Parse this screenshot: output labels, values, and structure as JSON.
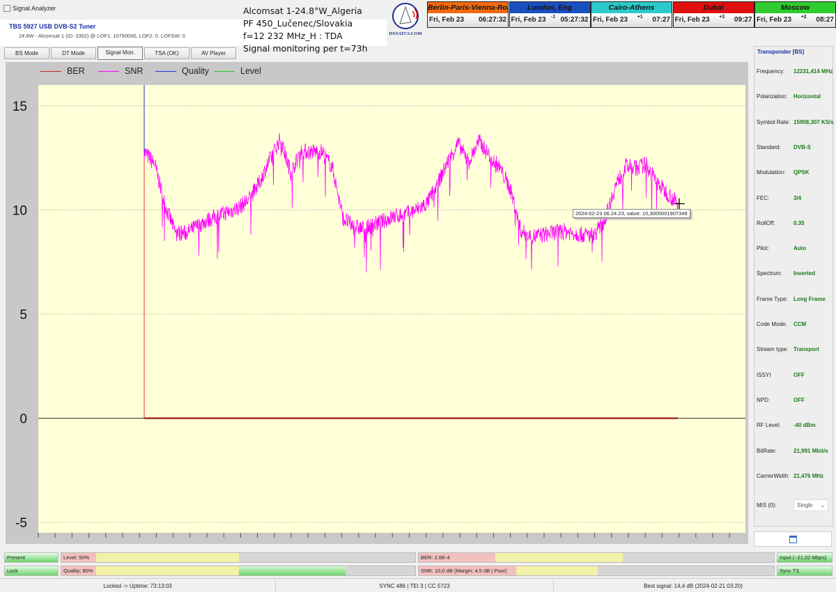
{
  "window": {
    "title": "Signal Analyzer"
  },
  "tuner": {
    "name": "TBS 5927 USB DVB-S2 Tuner",
    "info": "24.8W - Alcomsat 1 (ID: 3352) @ LOF1: 10750000, LOF2: 0, LOFSW: 0"
  },
  "overlay": {
    "line1": "Alcomsat 1-24.8°W_Algeria",
    "line2": "PF 450_Lučenec/Slovakia",
    "line3": "f=12 232 MHz_H : TDA",
    "line4": "Signal monitoring per t=73h",
    "logo": "DXSATCS.COM"
  },
  "clocks": [
    {
      "city": "Berlin-Paris-Vienna-Roma",
      "date": "Fri, Feb 23",
      "offset": "",
      "time": "06:27:32",
      "color": "#f26a10",
      "text": "#111"
    },
    {
      "city": "London, Eng",
      "date": "Fri, Feb 23",
      "offset": "-1",
      "time": "05:27:32",
      "color": "#1a4fc0",
      "text": "#111"
    },
    {
      "city": "Cairo-Athens",
      "date": "Fri, Feb 23",
      "offset": "+1",
      "time": "07:27",
      "color": "#2ccaca",
      "text": "#111"
    },
    {
      "city": "Dubai",
      "date": "Fri, Feb 23",
      "offset": "+3",
      "time": "09:27",
      "color": "#e01010",
      "text": "#111"
    },
    {
      "city": "Moscow",
      "date": "Fri, Feb 23",
      "offset": "+2",
      "time": "08:27",
      "color": "#2ecc2e",
      "text": "#111"
    }
  ],
  "tabs": [
    {
      "label": "BS Mode"
    },
    {
      "label": "DT Mode"
    },
    {
      "label": "Signal Mon.",
      "active": true
    },
    {
      "label": "TSA (OK)"
    },
    {
      "label": "AV Player"
    }
  ],
  "chart_data": {
    "type": "line",
    "legend": [
      {
        "name": "BER",
        "color": "#cc2020"
      },
      {
        "name": "SNR",
        "color": "#ff00ff"
      },
      {
        "name": "Quality",
        "color": "#2030d0"
      },
      {
        "name": "Level",
        "color": "#30c030"
      }
    ],
    "legend_placement": "top-left",
    "ylim": [
      -5.5,
      16
    ],
    "yticks": [
      "15",
      "10",
      "5",
      "0",
      "-5"
    ],
    "grid": true,
    "background": "#ffffd8",
    "series": [
      {
        "name": "SNR",
        "values": [
          12.8,
          12.2,
          10.2,
          8.9,
          8.9,
          9.2,
          9.5,
          9.7,
          9.9,
          10.1,
          10.5,
          11.3,
          12.4,
          13.4,
          11.8,
          12.8,
          12.8,
          12.8,
          12.0,
          9.6,
          9.2,
          9.1,
          9.3,
          9.5,
          9.7,
          9.8,
          10.0,
          10.3,
          11.2,
          12.3,
          13.2,
          12.3,
          13.3,
          12.6,
          12.0,
          11.0,
          9.0,
          8.7,
          8.8,
          8.9,
          9.0,
          8.9,
          8.8,
          8.8,
          9.5,
          11.1,
          12.1,
          12.0,
          12.2,
          11.3,
          10.8,
          10.3
        ]
      },
      {
        "name": "BER",
        "values": [
          0,
          0
        ]
      }
    ],
    "tooltip": "2024-02-23 06.24.23, value: 10,3000001907349"
  },
  "transponder": {
    "title": "Transponder [BS]",
    "rows": [
      {
        "label": "Frequency:",
        "value": "12231,414 MHz"
      },
      {
        "label": "Polarization:",
        "value": "Horizontal"
      },
      {
        "label": "Symbol Rate:",
        "value": "15908,307 KS/s"
      },
      {
        "label": "Standard:",
        "value": "DVB-S"
      },
      {
        "label": "Modulation:",
        "value": "QPSK"
      },
      {
        "label": "FEC:",
        "value": "3/4"
      },
      {
        "label": "RollOff:",
        "value": "0.35"
      },
      {
        "label": "Pilot:",
        "value": "Auto"
      },
      {
        "label": "Spectrum:",
        "value": "Inverted"
      },
      {
        "label": "Frame Type:",
        "value": "Long Frame"
      },
      {
        "label": "Code Mode:",
        "value": "CCM"
      },
      {
        "label": "Stream type:",
        "value": "Transport"
      },
      {
        "label": "ISSYI",
        "value": "OFF"
      },
      {
        "label": "NPD:",
        "value": "OFF"
      },
      {
        "label": "RF Level:",
        "value": "-40 dBm"
      },
      {
        "label": "BitRate:",
        "value": "21,991 Mbit/s"
      },
      {
        "label": "CarrierWidth:",
        "value": "21,476 MHz"
      }
    ],
    "mis_label": "MIS (0):",
    "mis_value": "Single"
  },
  "indicators": {
    "present": "Present",
    "lock": "Lock",
    "level": "Level: 50%",
    "level_pct": 50,
    "quality": "Quality: 80%",
    "quality_pct": 80,
    "ber": "BER: 2,6E-4",
    "snr": "SNR: 10,0 dB (Margin: 4,5 dB | Poor)",
    "input": "Input (~21,02 Mbps)",
    "sync": "Sync TS"
  },
  "status": {
    "uptime": "Locked -> Uptime: 73:13:03",
    "sync": "SYNC 486 | TEI 3 | CC 5723",
    "best": "Best signal: 14,4 dB (2024-02-21 03:20)"
  }
}
